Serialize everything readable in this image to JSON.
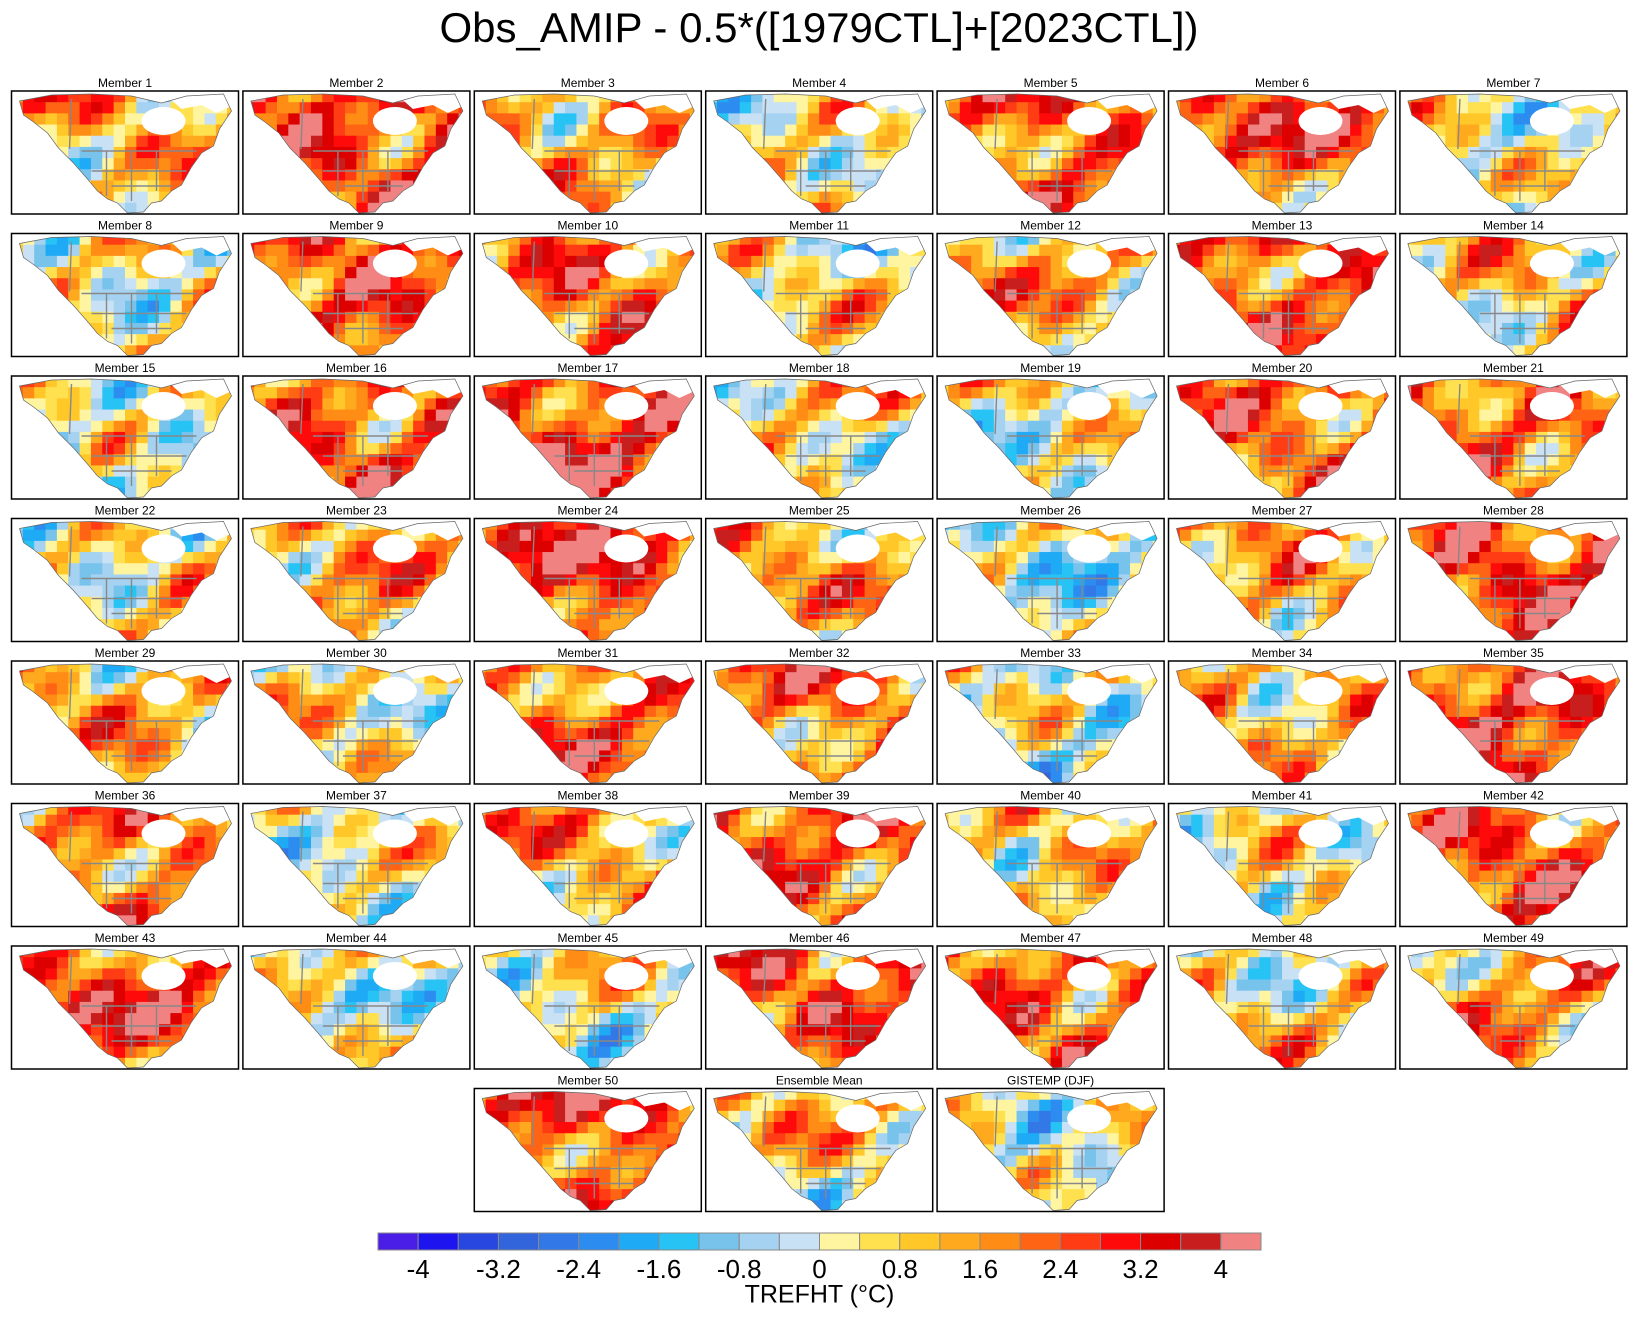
{
  "title": "Obs_AMIP - 0.5*([1979CTL]+[2023CTL])",
  "panels": [
    {
      "title": "Member 1"
    },
    {
      "title": "Member 2"
    },
    {
      "title": "Member 3"
    },
    {
      "title": "Member 4"
    },
    {
      "title": "Member 5"
    },
    {
      "title": "Member 6"
    },
    {
      "title": "Member 7"
    },
    {
      "title": "Member 8"
    },
    {
      "title": "Member 9"
    },
    {
      "title": "Member 10"
    },
    {
      "title": "Member 11"
    },
    {
      "title": "Member 12"
    },
    {
      "title": "Member 13"
    },
    {
      "title": "Member 14"
    },
    {
      "title": "Member 15"
    },
    {
      "title": "Member 16"
    },
    {
      "title": "Member 17"
    },
    {
      "title": "Member 18"
    },
    {
      "title": "Member 19"
    },
    {
      "title": "Member 20"
    },
    {
      "title": "Member 21"
    },
    {
      "title": "Member 22"
    },
    {
      "title": "Member 23"
    },
    {
      "title": "Member 24"
    },
    {
      "title": "Member 25"
    },
    {
      "title": "Member 26"
    },
    {
      "title": "Member 27"
    },
    {
      "title": "Member 28"
    },
    {
      "title": "Member 29"
    },
    {
      "title": "Member 30"
    },
    {
      "title": "Member 31"
    },
    {
      "title": "Member 32"
    },
    {
      "title": "Member 33"
    },
    {
      "title": "Member 34"
    },
    {
      "title": "Member 35"
    },
    {
      "title": "Member 36"
    },
    {
      "title": "Member 37"
    },
    {
      "title": "Member 38"
    },
    {
      "title": "Member 39"
    },
    {
      "title": "Member 40"
    },
    {
      "title": "Member 41"
    },
    {
      "title": "Member 42"
    },
    {
      "title": "Member 43"
    },
    {
      "title": "Member 44"
    },
    {
      "title": "Member 45"
    },
    {
      "title": "Member 46"
    },
    {
      "title": "Member 47"
    },
    {
      "title": "Member 48"
    },
    {
      "title": "Member 49"
    },
    {
      "title": "Member 50"
    },
    {
      "title": "Ensemble Mean"
    },
    {
      "title": "GISTEMP (DJF)"
    }
  ],
  "colorbar": {
    "label": "TREFHT (°C)",
    "colors": [
      "#4b1ee8",
      "#1e14f0",
      "#2846e0",
      "#3264dc",
      "#3278e6",
      "#2d8cf0",
      "#1eaaf5",
      "#28c3f5",
      "#78c3eb",
      "#a5d2f0",
      "#c8e1f5",
      "#fff5a0",
      "#ffe150",
      "#ffc828",
      "#ffaa1e",
      "#ff8c14",
      "#ff6414",
      "#ff3c14",
      "#ff0a0a",
      "#dc0000",
      "#c81e1e",
      "#f08282"
    ],
    "levels": [
      -4,
      -3.6,
      -3.2,
      -2.8,
      -2.4,
      -2,
      -1.6,
      -1.2,
      -0.8,
      -0.4,
      0,
      0.4,
      0.8,
      1.2,
      1.6,
      2,
      2.4,
      2.8,
      3.2,
      3.6,
      4
    ],
    "ticks": [
      -4,
      -3.2,
      -2.4,
      -1.6,
      -0.8,
      0,
      0.8,
      1.6,
      2.4,
      3.2,
      4
    ]
  }
}
